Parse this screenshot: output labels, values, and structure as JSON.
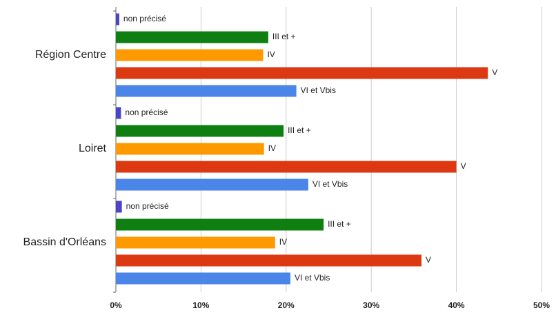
{
  "chart_data": {
    "type": "bar",
    "orientation": "horizontal",
    "categories": [
      "Région Centre",
      "Loiret",
      "Bassin d'Orléans"
    ],
    "series": [
      {
        "name": "non précisé",
        "color": "#4b45c6",
        "values": [
          0.4,
          0.6,
          0.7
        ]
      },
      {
        "name": "III et +",
        "color": "#0f7f12",
        "values": [
          17.9,
          19.7,
          24.4
        ]
      },
      {
        "name": "IV",
        "color": "#ff9900",
        "values": [
          17.3,
          17.4,
          18.7
        ]
      },
      {
        "name": "V",
        "color": "#dc3912",
        "values": [
          43.7,
          40.0,
          35.9
        ]
      },
      {
        "name": "VI et Vbis",
        "color": "#4a86e8",
        "values": [
          21.2,
          22.6,
          20.5
        ]
      }
    ],
    "xlim": [
      0,
      50
    ],
    "xticks": [
      {
        "value": 0,
        "label": "0%"
      },
      {
        "value": 10,
        "label": "10%"
      },
      {
        "value": 20,
        "label": "20%"
      },
      {
        "value": 30,
        "label": "30%"
      },
      {
        "value": 40,
        "label": "40%"
      },
      {
        "value": 50,
        "label": "50%"
      }
    ],
    "grid": true
  }
}
